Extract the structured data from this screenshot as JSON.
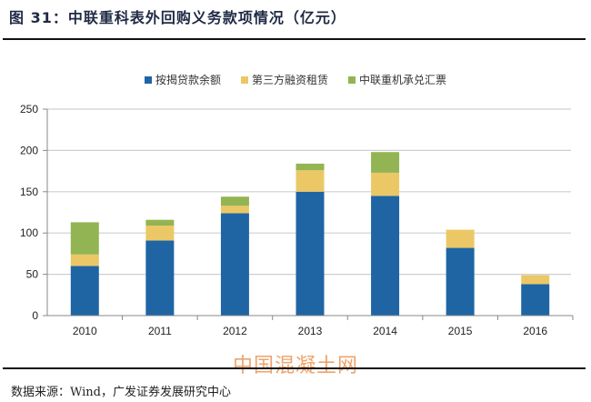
{
  "header": {
    "title": "图 31：中联重科表外回购义务款项情况（亿元）"
  },
  "footer": {
    "source": "数据来源：Wind，广发证券发展研究中心",
    "watermark": "中国混凝土网"
  },
  "colors": {
    "blue": "#1f65a4",
    "yellow": "#ebc865",
    "green": "#93b452",
    "grid": "#cfcfcf",
    "axis": "#888888"
  },
  "chart_data": {
    "type": "bar",
    "stacked": true,
    "title": "中联重科表外回购义务款项情况（亿元）",
    "xlabel": "",
    "ylabel": "",
    "categories": [
      "2010",
      "2011",
      "2012",
      "2013",
      "2014",
      "2015",
      "2016"
    ],
    "series": [
      {
        "name": "按揭贷款余额",
        "color": "#1f65a4",
        "values": [
          60,
          91,
          124,
          150,
          145,
          82,
          38
        ]
      },
      {
        "name": "第三方融资租赁",
        "color": "#ebc865",
        "values": [
          14,
          18,
          9,
          26,
          28,
          22,
          11
        ]
      },
      {
        "name": "中联重机承兑汇票",
        "color": "#93b452",
        "values": [
          39,
          7,
          11,
          8,
          25,
          0,
          0
        ]
      }
    ],
    "ylim": [
      0,
      250
    ],
    "yticks": [
      "0",
      "50",
      "100",
      "150",
      "200",
      "250"
    ],
    "ytick_values": [
      0,
      50,
      100,
      150,
      200,
      250
    ],
    "grid": true,
    "legend_position": "top-center"
  }
}
